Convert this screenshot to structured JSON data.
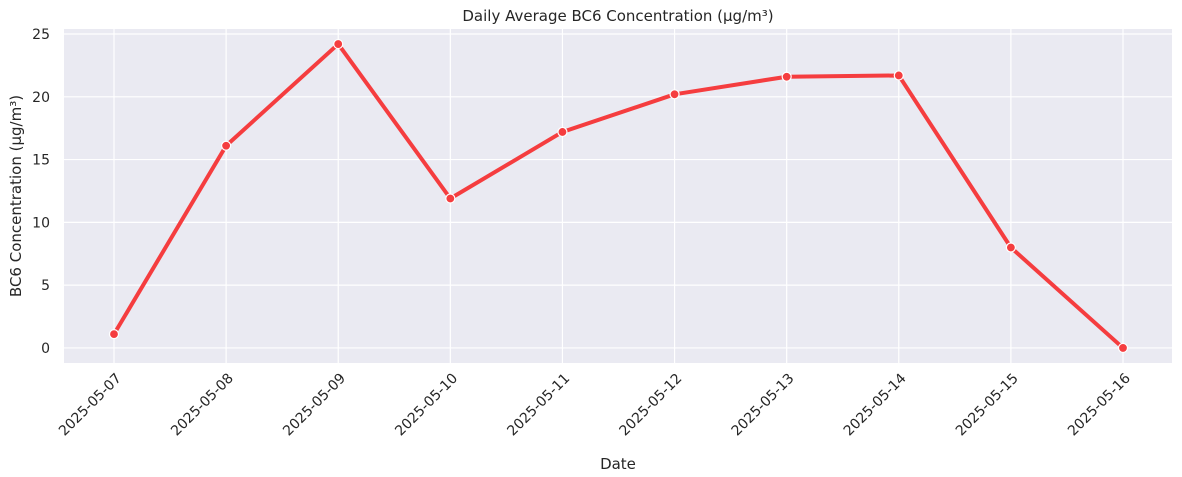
{
  "chart_data": {
    "type": "line",
    "title": "Daily Average BC6 Concentration (µg/m³)",
    "xlabel": "Date",
    "ylabel": "BC6 Concentration (µg/m³)",
    "x": [
      "2025-05-07",
      "2025-05-08",
      "2025-05-09",
      "2025-05-10",
      "2025-05-11",
      "2025-05-12",
      "2025-05-13",
      "2025-05-14",
      "2025-05-15",
      "2025-05-16"
    ],
    "series": [
      {
        "values": [
          1.1,
          16.1,
          24.2,
          11.9,
          17.2,
          20.2,
          21.6,
          21.7,
          8.0,
          0.0
        ]
      }
    ],
    "ylim": [
      -1.2,
      25.4
    ],
    "yticks": [
      0,
      5,
      10,
      15,
      20,
      25
    ],
    "grid": true,
    "colors": {
      "line": "#f53d3f",
      "background": "#eaeaf2",
      "grid": "#ffffff"
    }
  }
}
